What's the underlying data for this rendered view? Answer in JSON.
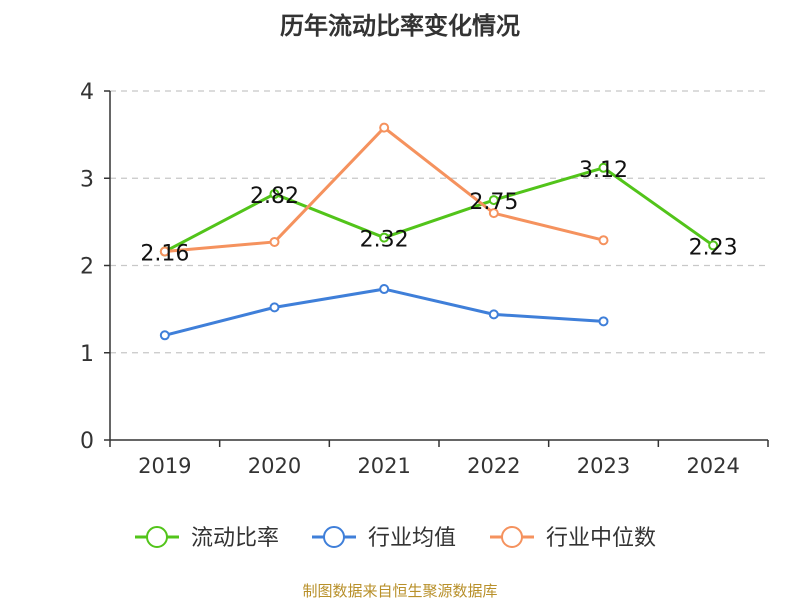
{
  "chart_data": {
    "type": "line",
    "title": "历年流动比率变化情况",
    "categories": [
      "2019",
      "2020",
      "2021",
      "2022",
      "2023",
      "2024"
    ],
    "ylim": [
      0,
      4
    ],
    "yticks": [
      0,
      1,
      2,
      3,
      4
    ],
    "grid": true,
    "legend_position": "bottom",
    "series": [
      {
        "name": "流动比率",
        "color": "#52c41a",
        "values": [
          2.16,
          2.82,
          2.32,
          2.75,
          3.12,
          2.23
        ],
        "labels": [
          "2.16",
          "2.82",
          "2.32",
          "2.75",
          "3.12",
          "2.23"
        ],
        "show_labels": true
      },
      {
        "name": "行业均值",
        "color": "#3f7fd9",
        "values": [
          1.2,
          1.52,
          1.73,
          1.44,
          1.36,
          null
        ],
        "show_labels": false
      },
      {
        "name": "行业中位数",
        "color": "#f5925e",
        "values": [
          2.16,
          2.27,
          3.58,
          2.6,
          2.29,
          null
        ],
        "show_labels": false
      }
    ]
  },
  "footer": {
    "source": "制图数据来自恒生聚源数据库",
    "source_color": "#b8902a"
  }
}
